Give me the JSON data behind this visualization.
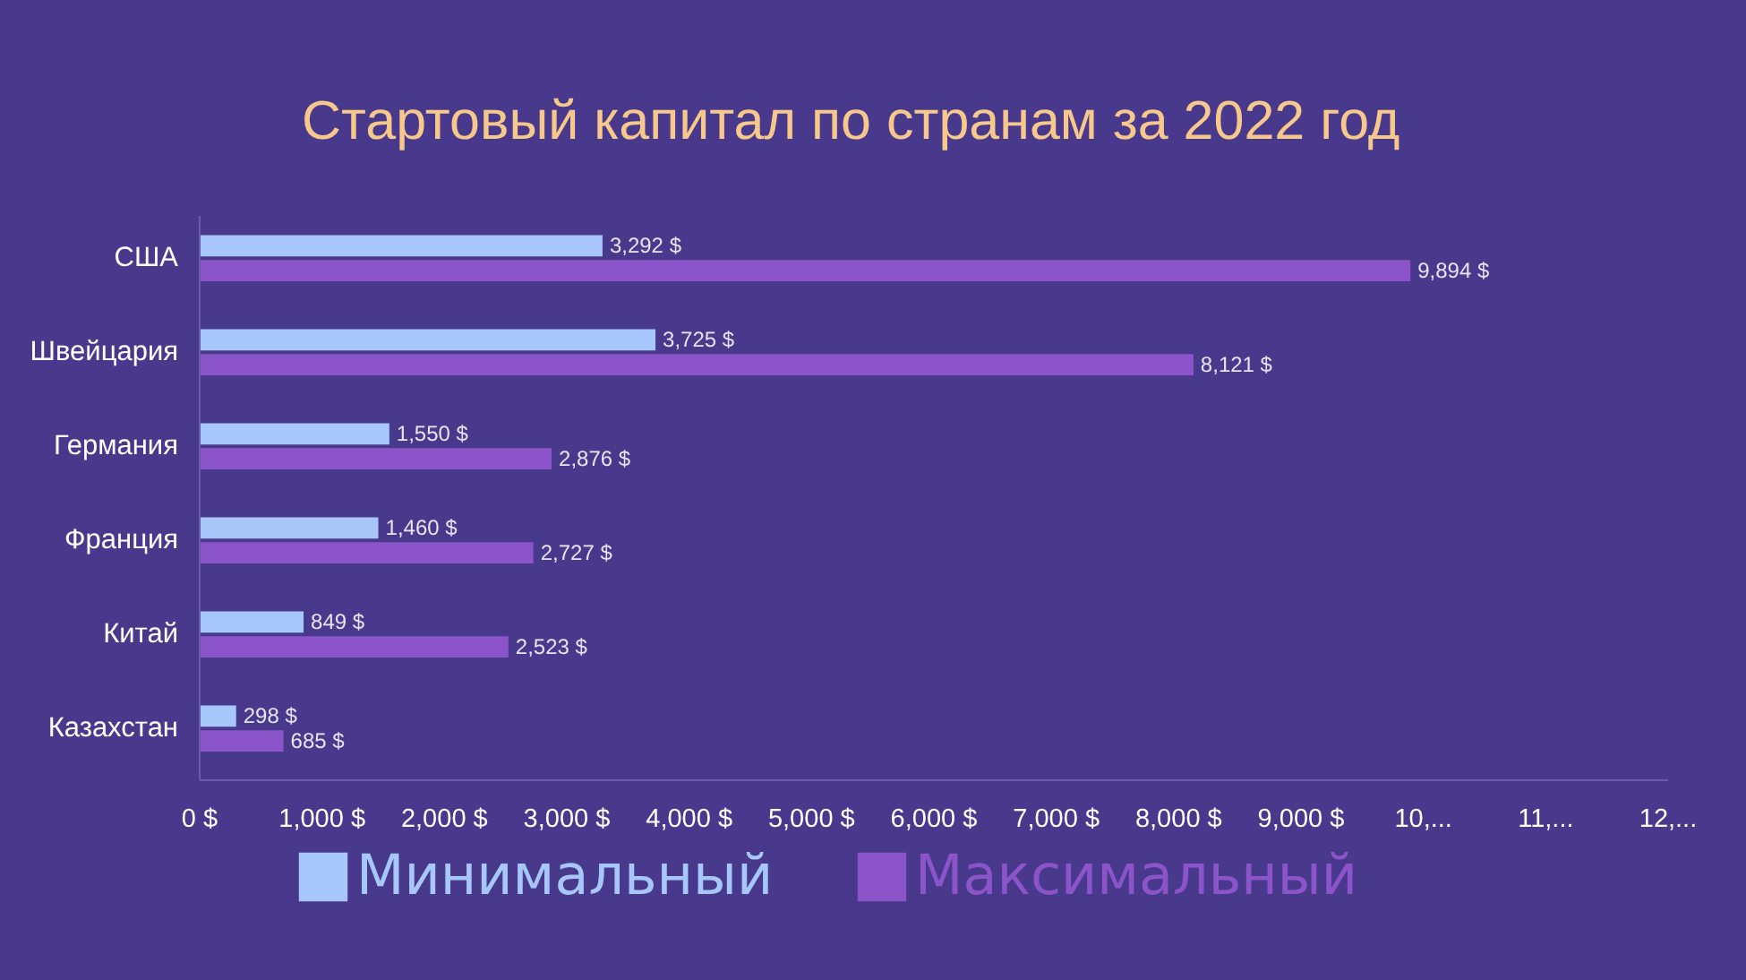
{
  "chart_data": {
    "type": "bar",
    "orientation": "horizontal",
    "title": "Стартовый капитал по странам за 2022 год",
    "categories": [
      "США",
      "Швейцария",
      "Германия",
      "Франция",
      "Китай",
      "Казахстан"
    ],
    "series": [
      {
        "name": "Минимальный",
        "color": "#a7c7fb",
        "values": [
          3292,
          3725,
          1550,
          1460,
          849,
          298
        ],
        "value_labels": [
          "3,292 $",
          "3,725 $",
          "1,550 $",
          "1,460 $",
          "849 $",
          "298 $"
        ]
      },
      {
        "name": "Максимальный",
        "color": "#8b55c9",
        "values": [
          9894,
          8121,
          2876,
          2727,
          2523,
          685
        ],
        "value_labels": [
          "9,894 $",
          "8,121 $",
          "2,876 $",
          "2,727 $",
          "2,523 $",
          "685 $"
        ]
      }
    ],
    "xlim": [
      0,
      12000
    ],
    "xticks": [
      {
        "value": 0,
        "label": "0 $"
      },
      {
        "value": 1000,
        "label": "1,000 $"
      },
      {
        "value": 2000,
        "label": "2,000 $"
      },
      {
        "value": 3000,
        "label": "3,000 $"
      },
      {
        "value": 4000,
        "label": "4,000 $"
      },
      {
        "value": 5000,
        "label": "5,000 $"
      },
      {
        "value": 6000,
        "label": "6,000 $"
      },
      {
        "value": 7000,
        "label": "7,000 $"
      },
      {
        "value": 8000,
        "label": "8,000 $"
      },
      {
        "value": 9000,
        "label": "9,000 $"
      },
      {
        "value": 10000,
        "label": "10,..."
      },
      {
        "value": 11000,
        "label": "11,..."
      },
      {
        "value": 12000,
        "label": "12,..."
      }
    ],
    "grid": false,
    "legend": "bottom"
  }
}
